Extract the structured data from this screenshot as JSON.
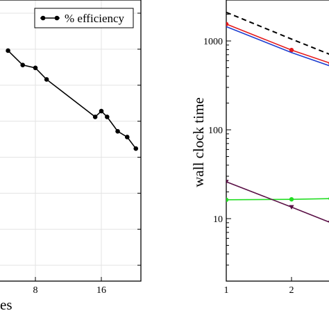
{
  "chart_data": [
    {
      "type": "line",
      "title": "",
      "xlabel_visible_fragment": "es",
      "ylabel": "",
      "x_scale": "log2",
      "x_ticks": [
        8,
        16
      ],
      "x_tick_labels": [
        "8",
        "16"
      ],
      "legend": {
        "placement": "top-right",
        "entries": [
          "% efficiency"
        ]
      },
      "grid": true,
      "series": [
        {
          "name": "% efficiency",
          "color": "#000000",
          "marker": "circle",
          "x": [
            6,
            7,
            8,
            9,
            15,
            16,
            17,
            19,
            21,
            23
          ],
          "y": [
            0.87,
            0.82,
            0.81,
            0.77,
            0.64,
            0.66,
            0.64,
            0.59,
            0.57,
            0.53
          ]
        }
      ]
    },
    {
      "type": "line",
      "title": "",
      "xlabel": "",
      "ylabel": "wall clock time",
      "y_scale": "log",
      "x_ticks": [
        1,
        2
      ],
      "x_tick_labels": [
        "1",
        "2"
      ],
      "y_ticks": [
        10,
        100,
        1000
      ],
      "y_tick_labels": [
        "10",
        "100",
        "1000"
      ],
      "grid": false,
      "series": [
        {
          "color": "#000000",
          "dash": true,
          "marker": "none",
          "x": [
            1,
            2,
            2.6
          ],
          "y": [
            2100,
            1050,
            700
          ]
        },
        {
          "color": "#e41a1c",
          "marker": "circle",
          "x": [
            1,
            2,
            2.6
          ],
          "y": [
            1550,
            790,
            560
          ]
        },
        {
          "color": "#1f3fd0",
          "marker": "none",
          "x": [
            1,
            2,
            2.6
          ],
          "y": [
            1450,
            740,
            520
          ]
        },
        {
          "color": "#22dd22",
          "marker": "circle",
          "x": [
            1,
            2,
            2.6
          ],
          "y": [
            16.3,
            16.5,
            16.8
          ]
        },
        {
          "color": "#5a1046",
          "marker": "triangle-down",
          "x": [
            1,
            2,
            2.6
          ],
          "y": [
            26,
            13.5,
            9.0
          ]
        }
      ]
    }
  ]
}
